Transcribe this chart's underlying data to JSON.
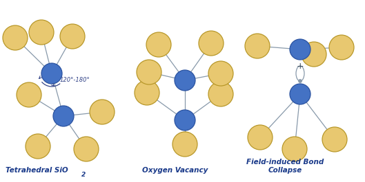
{
  "bg_color": "#ffffff",
  "blue_color": "#4472c4",
  "yellow_color": "#e8c870",
  "yellow_edge": "#b8982a",
  "blue_edge": "#2a52a0",
  "line_color": "#8899aa",
  "text_color": "#1a3a8a",
  "label1": "Tetrahedral SiO",
  "label1_sub": "2",
  "label2": "Oxygen Vacancy",
  "label3": "Field-induced Bond\nCollapse",
  "angle_label": "120°-180°",
  "plus_label": "+",
  "fig_width": 5.29,
  "fig_height": 2.65,
  "dpi": 100,
  "or": 0.21,
  "sr": 0.175,
  "lw": 0.9
}
